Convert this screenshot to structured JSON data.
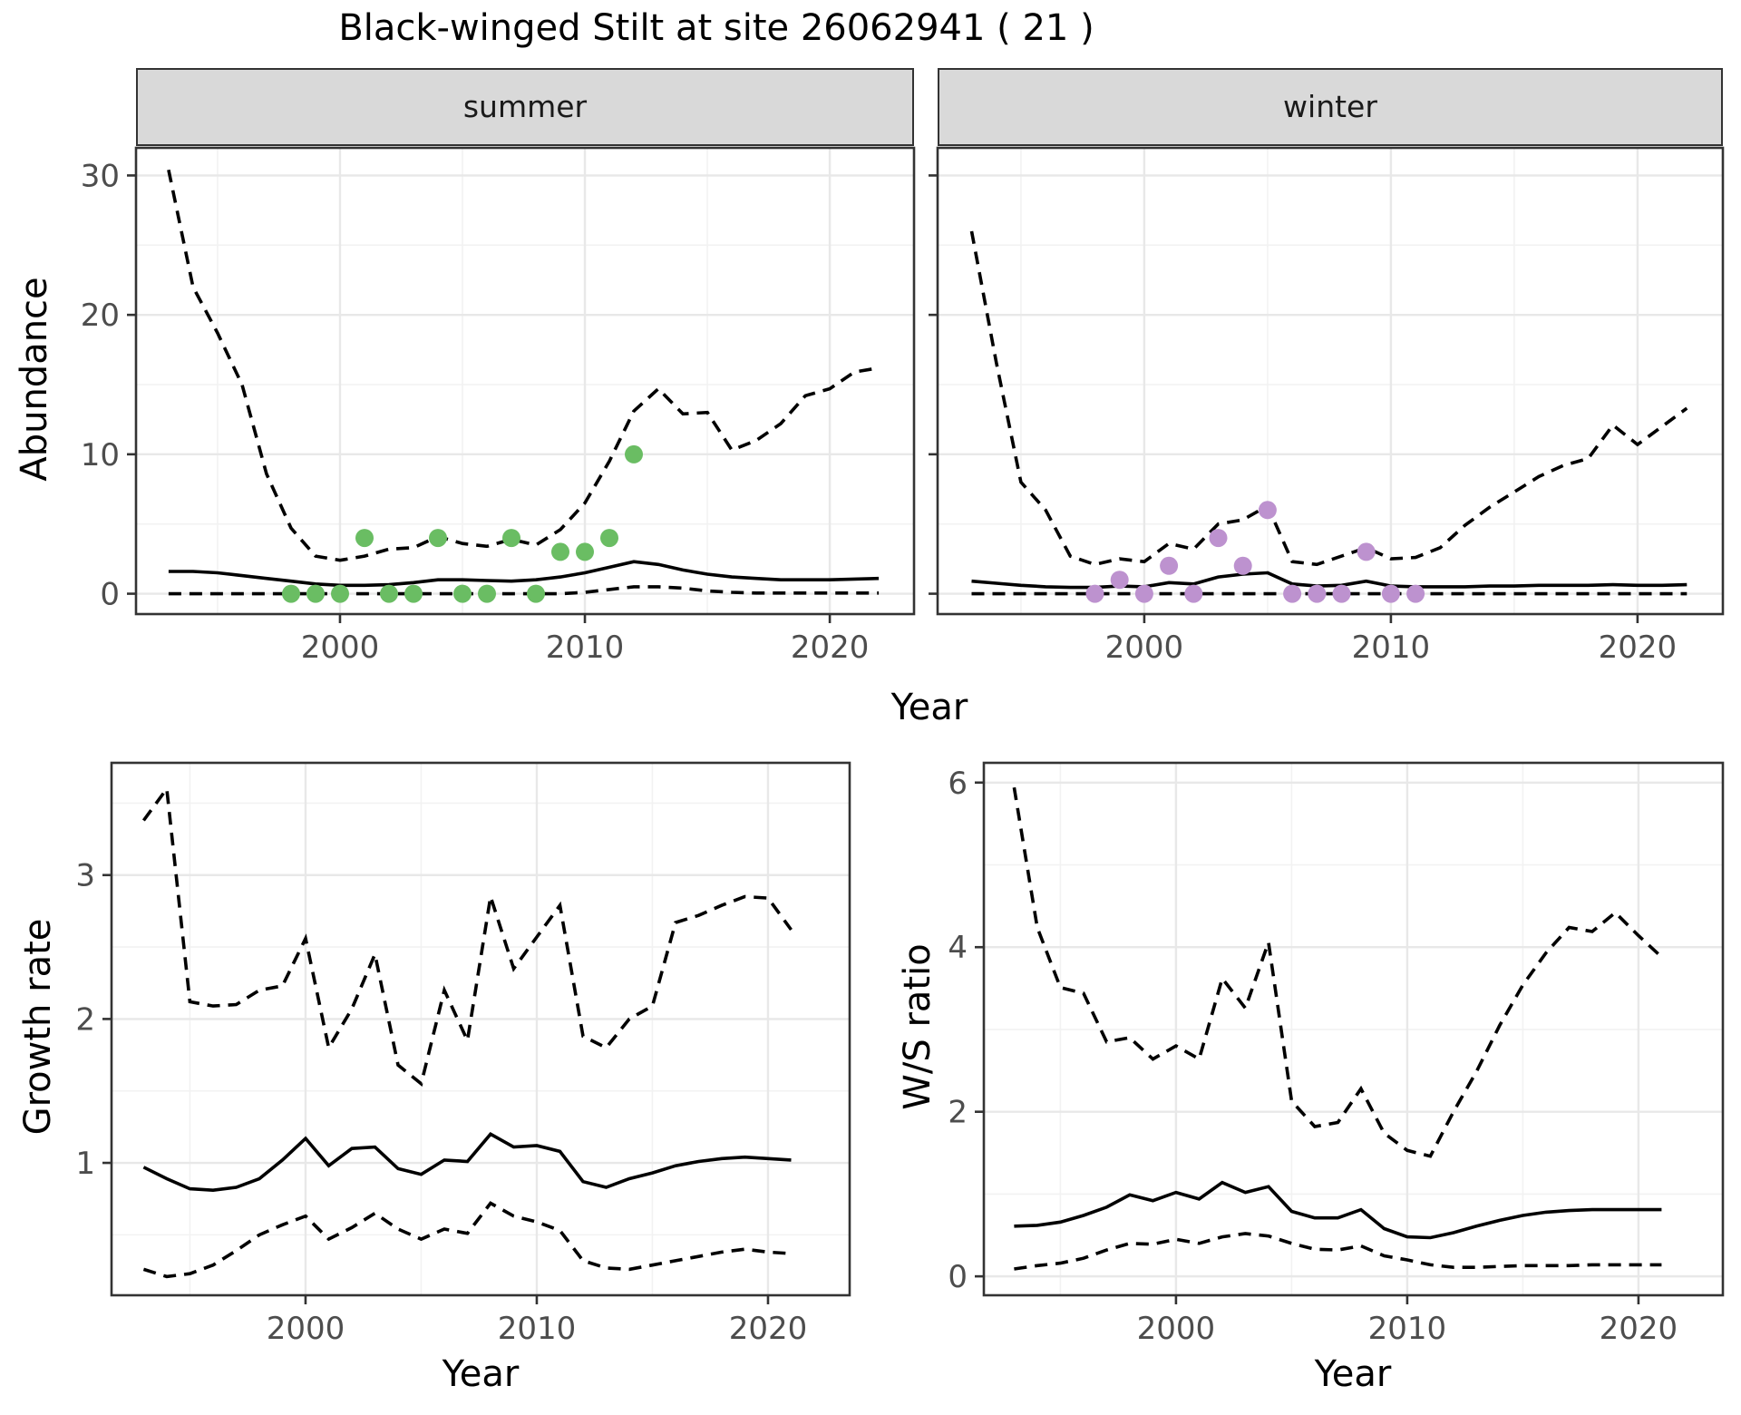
{
  "title": "Black-winged Stilt at site 26062941 ( 21 )",
  "axis_titles": {
    "abundance": "Abundance",
    "year": "Year",
    "growth_rate": "Growth rate",
    "ws_ratio": "W/S ratio"
  },
  "facets": {
    "summer": "summer",
    "winter": "winter"
  },
  "colors": {
    "summer_points": "#6abd63",
    "winter_points": "#bd92cf",
    "line": "#000000",
    "strip_fill": "#d9d9d9",
    "panel_border": "#333333",
    "grid_major": "#e8e8e8",
    "grid_minor": "#f2f2f2",
    "tick_text": "#4d4d4d"
  },
  "chart_data": [
    {
      "id": "summer",
      "type": "line",
      "title": "summer",
      "xlabel": "Year",
      "ylabel": "Abundance",
      "xlim": [
        1991.67,
        2023.44
      ],
      "ylim": [
        -1.46,
        31.98
      ],
      "x_ticks": [
        2000,
        2010,
        2020
      ],
      "x_minor": [
        1995,
        2005,
        2015
      ],
      "y_ticks": [
        0,
        10,
        20,
        30
      ],
      "y_minor": [
        5,
        15,
        25
      ],
      "show_y_labels": true,
      "x": [
        1993,
        1994,
        1995,
        1996,
        1997,
        1998,
        1999,
        2000,
        2001,
        2002,
        2003,
        2004,
        2005,
        2006,
        2007,
        2008,
        2009,
        2010,
        2011,
        2012,
        2013,
        2014,
        2015,
        2016,
        2017,
        2018,
        2019,
        2020,
        2021,
        2022
      ],
      "series": [
        {
          "name": "upper_95ci",
          "style": "dashed",
          "values": [
            30.4,
            22.0,
            18.7,
            15.0,
            8.6,
            4.7,
            2.7,
            2.4,
            2.7,
            3.2,
            3.3,
            4.1,
            3.6,
            3.4,
            3.9,
            3.5,
            4.6,
            6.5,
            9.5,
            13.1,
            14.7,
            12.9,
            13.0,
            10.3,
            11.0,
            12.2,
            14.2,
            14.7,
            15.9,
            16.2
          ]
        },
        {
          "name": "median",
          "style": "solid",
          "values": [
            1.6,
            1.6,
            1.5,
            1.3,
            1.1,
            0.9,
            0.7,
            0.6,
            0.6,
            0.65,
            0.8,
            1.0,
            1.0,
            0.95,
            0.9,
            1.0,
            1.2,
            1.5,
            1.9,
            2.3,
            2.1,
            1.7,
            1.4,
            1.2,
            1.1,
            1.0,
            1.0,
            1.0,
            1.05,
            1.1
          ]
        },
        {
          "name": "lower_95ci",
          "style": "dashed",
          "values": [
            0,
            0,
            0,
            0,
            0,
            0,
            0,
            0,
            0,
            0,
            0,
            0,
            0,
            0,
            0,
            0,
            0,
            0.1,
            0.3,
            0.5,
            0.5,
            0.4,
            0.2,
            0.1,
            0.05,
            0.05,
            0.05,
            0.05,
            0.05,
            0.05
          ]
        }
      ],
      "points": {
        "name": "observed_counts",
        "color": "#6abd63",
        "x": [
          1998,
          1999,
          2000,
          2001,
          2002,
          2003,
          2004,
          2005,
          2006,
          2007,
          2008,
          2009,
          2010,
          2011,
          2012
        ],
        "values": [
          0,
          0,
          0,
          4,
          0,
          0,
          4,
          0,
          0,
          4,
          0,
          3,
          3,
          4,
          10
        ]
      }
    },
    {
      "id": "winter",
      "type": "line",
      "title": "winter",
      "xlabel": "Year",
      "ylabel": "Abundance",
      "xlim": [
        1991.62,
        2023.46
      ],
      "ylim": [
        -1.46,
        31.98
      ],
      "x_ticks": [
        2000,
        2010,
        2020
      ],
      "x_minor": [
        1995,
        2005,
        2015
      ],
      "y_ticks": [
        0,
        10,
        20,
        30
      ],
      "y_minor": [
        5,
        15,
        25
      ],
      "show_y_labels": false,
      "x": [
        1993,
        1994,
        1995,
        1996,
        1997,
        1998,
        1999,
        2000,
        2001,
        2002,
        2003,
        2004,
        2005,
        2006,
        2007,
        2008,
        2009,
        2010,
        2011,
        2012,
        2013,
        2014,
        2015,
        2016,
        2017,
        2018,
        2019,
        2020,
        2021,
        2022
      ],
      "series": [
        {
          "name": "upper_95ci",
          "style": "dashed",
          "values": [
            26.0,
            16.6,
            8.0,
            6.0,
            2.7,
            2.1,
            2.5,
            2.3,
            3.6,
            3.2,
            5.0,
            5.3,
            6.3,
            2.3,
            2.1,
            2.7,
            3.3,
            2.5,
            2.6,
            3.3,
            4.9,
            6.2,
            7.3,
            8.4,
            9.2,
            9.7,
            12.1,
            10.7,
            12.0,
            13.3
          ]
        },
        {
          "name": "median",
          "style": "solid",
          "values": [
            0.9,
            0.75,
            0.6,
            0.5,
            0.45,
            0.45,
            0.55,
            0.5,
            0.8,
            0.7,
            1.2,
            1.4,
            1.5,
            0.7,
            0.55,
            0.6,
            0.9,
            0.55,
            0.5,
            0.5,
            0.5,
            0.55,
            0.55,
            0.6,
            0.6,
            0.6,
            0.65,
            0.6,
            0.6,
            0.65
          ]
        },
        {
          "name": "lower_95ci",
          "style": "dashed",
          "values": [
            0,
            0,
            0,
            0,
            0,
            0,
            0,
            0,
            0,
            0,
            0,
            0,
            0,
            0,
            0,
            0,
            0,
            0,
            0,
            0,
            0,
            0,
            0,
            0,
            0,
            0,
            0,
            0,
            0,
            0
          ]
        }
      ],
      "points": {
        "name": "observed_counts",
        "color": "#bd92cf",
        "x": [
          1998,
          1999,
          2000,
          2001,
          2002,
          2003,
          2004,
          2005,
          2006,
          2007,
          2008,
          2009,
          2010,
          2011
        ],
        "values": [
          0,
          1,
          0,
          2,
          0,
          4,
          2,
          6,
          0,
          0,
          0,
          3,
          0,
          0
        ]
      }
    },
    {
      "id": "growth",
      "type": "line",
      "title": "Growth rate",
      "xlabel": "Year",
      "ylabel": "Growth rate",
      "xlim": [
        1991.61,
        2023.53
      ],
      "ylim": [
        0.08,
        3.78
      ],
      "x_ticks": [
        2000,
        2010,
        2020
      ],
      "x_minor": [
        1995,
        2005,
        2015
      ],
      "y_ticks": [
        1,
        2,
        3
      ],
      "y_minor": [
        0.5,
        1.5,
        2.5,
        3.5
      ],
      "show_y_labels": true,
      "x": [
        1993,
        1994,
        1995,
        1996,
        1997,
        1998,
        1999,
        2000,
        2001,
        2002,
        2003,
        2004,
        2005,
        2006,
        2007,
        2008,
        2009,
        2010,
        2011,
        2012,
        2013,
        2014,
        2015,
        2016,
        2017,
        2018,
        2019,
        2020,
        2021
      ],
      "series": [
        {
          "name": "upper_95ci",
          "style": "dashed",
          "values": [
            3.38,
            3.6,
            2.12,
            2.09,
            2.1,
            2.2,
            2.23,
            2.56,
            1.8,
            2.07,
            2.45,
            1.68,
            1.55,
            2.2,
            1.85,
            2.85,
            2.35,
            2.57,
            2.79,
            1.88,
            1.8,
            2.0,
            2.09,
            2.67,
            2.72,
            2.79,
            2.85,
            2.84,
            2.62
          ]
        },
        {
          "name": "median",
          "style": "solid",
          "values": [
            0.97,
            0.89,
            0.82,
            0.81,
            0.83,
            0.89,
            1.02,
            1.17,
            0.98,
            1.1,
            1.11,
            0.96,
            0.92,
            1.02,
            1.01,
            1.2,
            1.11,
            1.12,
            1.08,
            0.87,
            0.83,
            0.89,
            0.93,
            0.98,
            1.01,
            1.03,
            1.04,
            1.03,
            1.02
          ]
        },
        {
          "name": "lower_95ci",
          "style": "dashed",
          "values": [
            0.26,
            0.21,
            0.23,
            0.29,
            0.39,
            0.5,
            0.57,
            0.63,
            0.47,
            0.55,
            0.65,
            0.54,
            0.47,
            0.54,
            0.51,
            0.72,
            0.63,
            0.59,
            0.53,
            0.32,
            0.27,
            0.26,
            0.29,
            0.32,
            0.35,
            0.38,
            0.4,
            0.38,
            0.37
          ]
        }
      ],
      "points": null
    },
    {
      "id": "ws",
      "type": "line",
      "title": "W/S ratio",
      "xlabel": "Year",
      "ylabel": "W/S ratio",
      "xlim": [
        1991.69,
        2023.65
      ],
      "ylim": [
        -0.23,
        6.24
      ],
      "x_ticks": [
        2000,
        2010,
        2020
      ],
      "x_minor": [
        1995,
        2005,
        2015
      ],
      "y_ticks": [
        0,
        2,
        4,
        6
      ],
      "y_minor": [
        1,
        3,
        5
      ],
      "show_y_labels": true,
      "x": [
        1993,
        1994,
        1995,
        1996,
        1997,
        1998,
        1999,
        2000,
        2001,
        2002,
        2003,
        2004,
        2005,
        2006,
        2007,
        2008,
        2009,
        2010,
        2011,
        2012,
        2013,
        2014,
        2015,
        2016,
        2017,
        2018,
        2019,
        2020,
        2021
      ],
      "series": [
        {
          "name": "upper_95ci",
          "style": "dashed",
          "values": [
            5.94,
            4.24,
            3.51,
            3.44,
            2.85,
            2.9,
            2.64,
            2.8,
            2.64,
            3.62,
            3.26,
            4.06,
            2.13,
            1.82,
            1.87,
            2.28,
            1.74,
            1.53,
            1.46,
            2.0,
            2.49,
            3.05,
            3.54,
            3.93,
            4.24,
            4.19,
            4.42,
            4.14,
            3.88
          ]
        },
        {
          "name": "median",
          "style": "solid",
          "values": [
            0.61,
            0.62,
            0.66,
            0.74,
            0.84,
            0.99,
            0.92,
            1.02,
            0.94,
            1.14,
            1.02,
            1.09,
            0.79,
            0.71,
            0.71,
            0.81,
            0.58,
            0.48,
            0.47,
            0.53,
            0.61,
            0.68,
            0.74,
            0.78,
            0.8,
            0.81,
            0.81,
            0.81,
            0.81
          ]
        },
        {
          "name": "lower_95ci",
          "style": "dashed",
          "values": [
            0.09,
            0.13,
            0.16,
            0.22,
            0.32,
            0.4,
            0.39,
            0.45,
            0.4,
            0.48,
            0.52,
            0.49,
            0.4,
            0.33,
            0.32,
            0.37,
            0.25,
            0.2,
            0.14,
            0.11,
            0.11,
            0.12,
            0.13,
            0.13,
            0.13,
            0.14,
            0.14,
            0.14,
            0.14
          ]
        }
      ],
      "points": null
    }
  ]
}
